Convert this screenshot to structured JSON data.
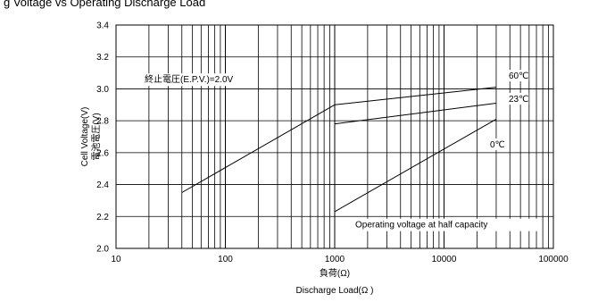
{
  "page": {
    "title": "g Voltage vs Operating Discharge Load"
  },
  "chart_data": {
    "type": "line",
    "x_scale": "log",
    "xlim": [
      10,
      100000
    ],
    "ylim": [
      2.0,
      3.4
    ],
    "x_ticks": [
      "10",
      "100",
      "1000",
      "10000",
      "100000"
    ],
    "y_ticks": [
      "2.0",
      "2.2",
      "2.4",
      "2.6",
      "2.8",
      "3.0",
      "3.2",
      "3.4"
    ],
    "xlabel": [
      "負荷(Ω)",
      "Discharge Load(Ω )"
    ],
    "ylabel": [
      "Cell Voltage(V)",
      "電池電圧(V)"
    ],
    "grid": true,
    "series": [
      {
        "name": "60℃",
        "x": [
          1000,
          30000
        ],
        "y": [
          2.9,
          3.01
        ]
      },
      {
        "name": "23℃",
        "x": [
          1000,
          30000
        ],
        "y": [
          2.78,
          2.91
        ]
      },
      {
        "name": "0℃",
        "x": [
          1000,
          30000
        ],
        "y": [
          2.23,
          2.81
        ]
      },
      {
        "name": "",
        "x": [
          40,
          1000
        ],
        "y": [
          2.35,
          2.9
        ]
      }
    ],
    "annotations": {
      "epv": "終止電圧(E.P.V.)=2.0V",
      "operating": "Operating voltage at half capacity"
    }
  }
}
